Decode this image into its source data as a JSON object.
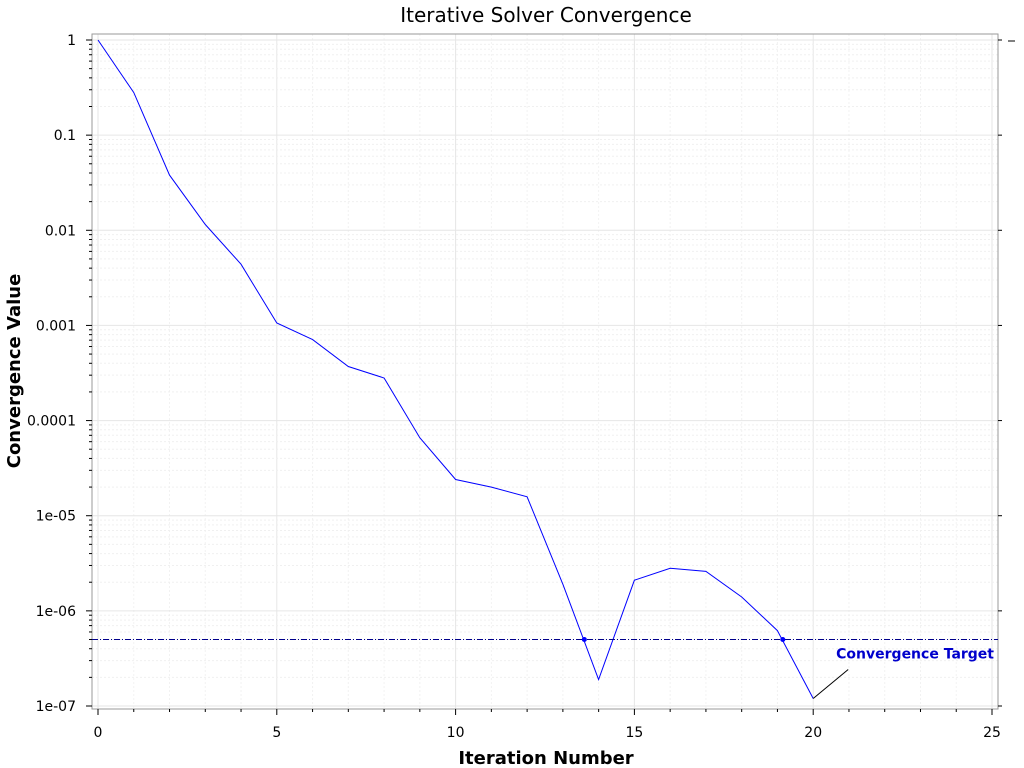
{
  "chart_data": {
    "type": "line",
    "title": "Iterative Solver Convergence",
    "xlabel": "Iteration Number",
    "ylabel": "Convergence Value",
    "xlim": [
      0,
      25
    ],
    "ylim": [
      1e-07,
      1
    ],
    "yscale": "log",
    "grid": true,
    "x_ticks": [
      0,
      5,
      10,
      15,
      20,
      25
    ],
    "x_tick_labels": [
      "0",
      "5",
      "10",
      "15",
      "20",
      "25"
    ],
    "y_ticks": [
      1e-07,
      1e-06,
      1e-05,
      0.0001,
      0.001,
      0.01,
      0.1,
      1
    ],
    "y_tick_labels": [
      "1e-07",
      "1e-06",
      "1e-05",
      "0.0001",
      "0.001",
      "0.01",
      "0.1",
      "1"
    ],
    "series": [
      {
        "color": "#0000ff",
        "x": [
          0,
          1,
          2,
          3,
          4,
          5,
          6,
          7,
          8,
          9,
          10,
          11,
          12,
          13,
          14,
          15,
          16,
          17,
          18,
          19,
          20
        ],
        "y": [
          1,
          0.28,
          0.038,
          0.0115,
          0.0044,
          0.00106,
          0.00071,
          0.00037,
          0.00028,
          6.6e-05,
          2.4e-05,
          2e-05,
          1.58e-05,
          1.9e-06,
          1.9e-07,
          2.1e-06,
          2.8e-06,
          2.6e-06,
          1.4e-06,
          6.2e-07,
          1.2e-07
        ]
      }
    ],
    "threshold": {
      "value": 5e-07,
      "label": "Convergence Target",
      "color": "#00008b",
      "label_color": "#0000cc"
    },
    "crossing_points": [
      {
        "x": 13.6,
        "y": 5e-07
      },
      {
        "x": 19.15,
        "y": 5e-07
      }
    ]
  }
}
